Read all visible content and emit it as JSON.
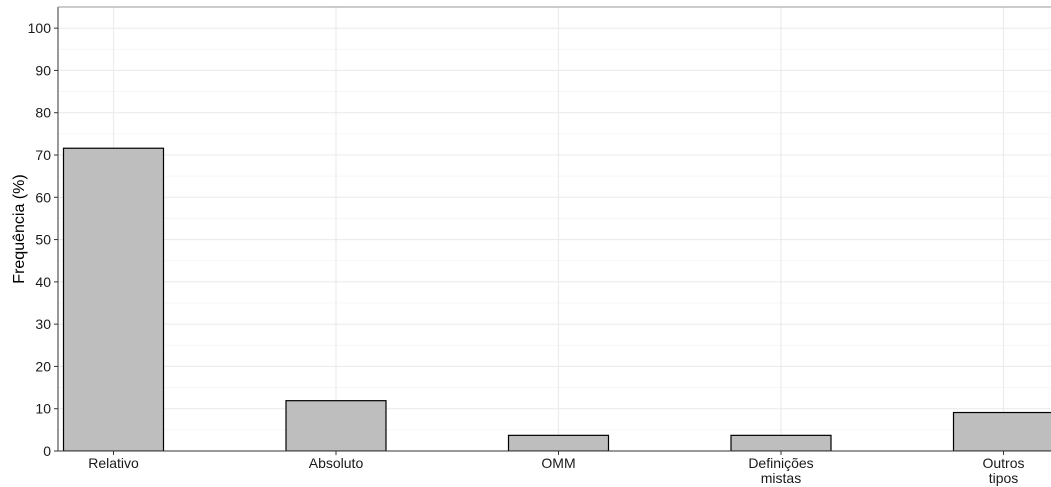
{
  "chart_data": {
    "type": "bar",
    "title": "",
    "xlabel": "",
    "ylabel": "Frequência (%)",
    "categories": [
      [
        "Relativo"
      ],
      [
        "Absoluto"
      ],
      [
        "OMM"
      ],
      [
        "Definições",
        "mistas"
      ],
      [
        "Outros",
        "tipos"
      ]
    ],
    "values": [
      71.6,
      11.9,
      3.7,
      3.7,
      9.1
    ],
    "ylim": [
      0,
      105
    ],
    "yticks": [
      0,
      10,
      20,
      30,
      40,
      50,
      60,
      70,
      80,
      90,
      100
    ],
    "grid": true,
    "legend": "none",
    "colors": {
      "bar_fill": "#bebebe",
      "bar_stroke": "#000000",
      "grid_major": "#ebebeb",
      "grid_minor": "#f4f4f4",
      "axis": "#333333"
    }
  }
}
